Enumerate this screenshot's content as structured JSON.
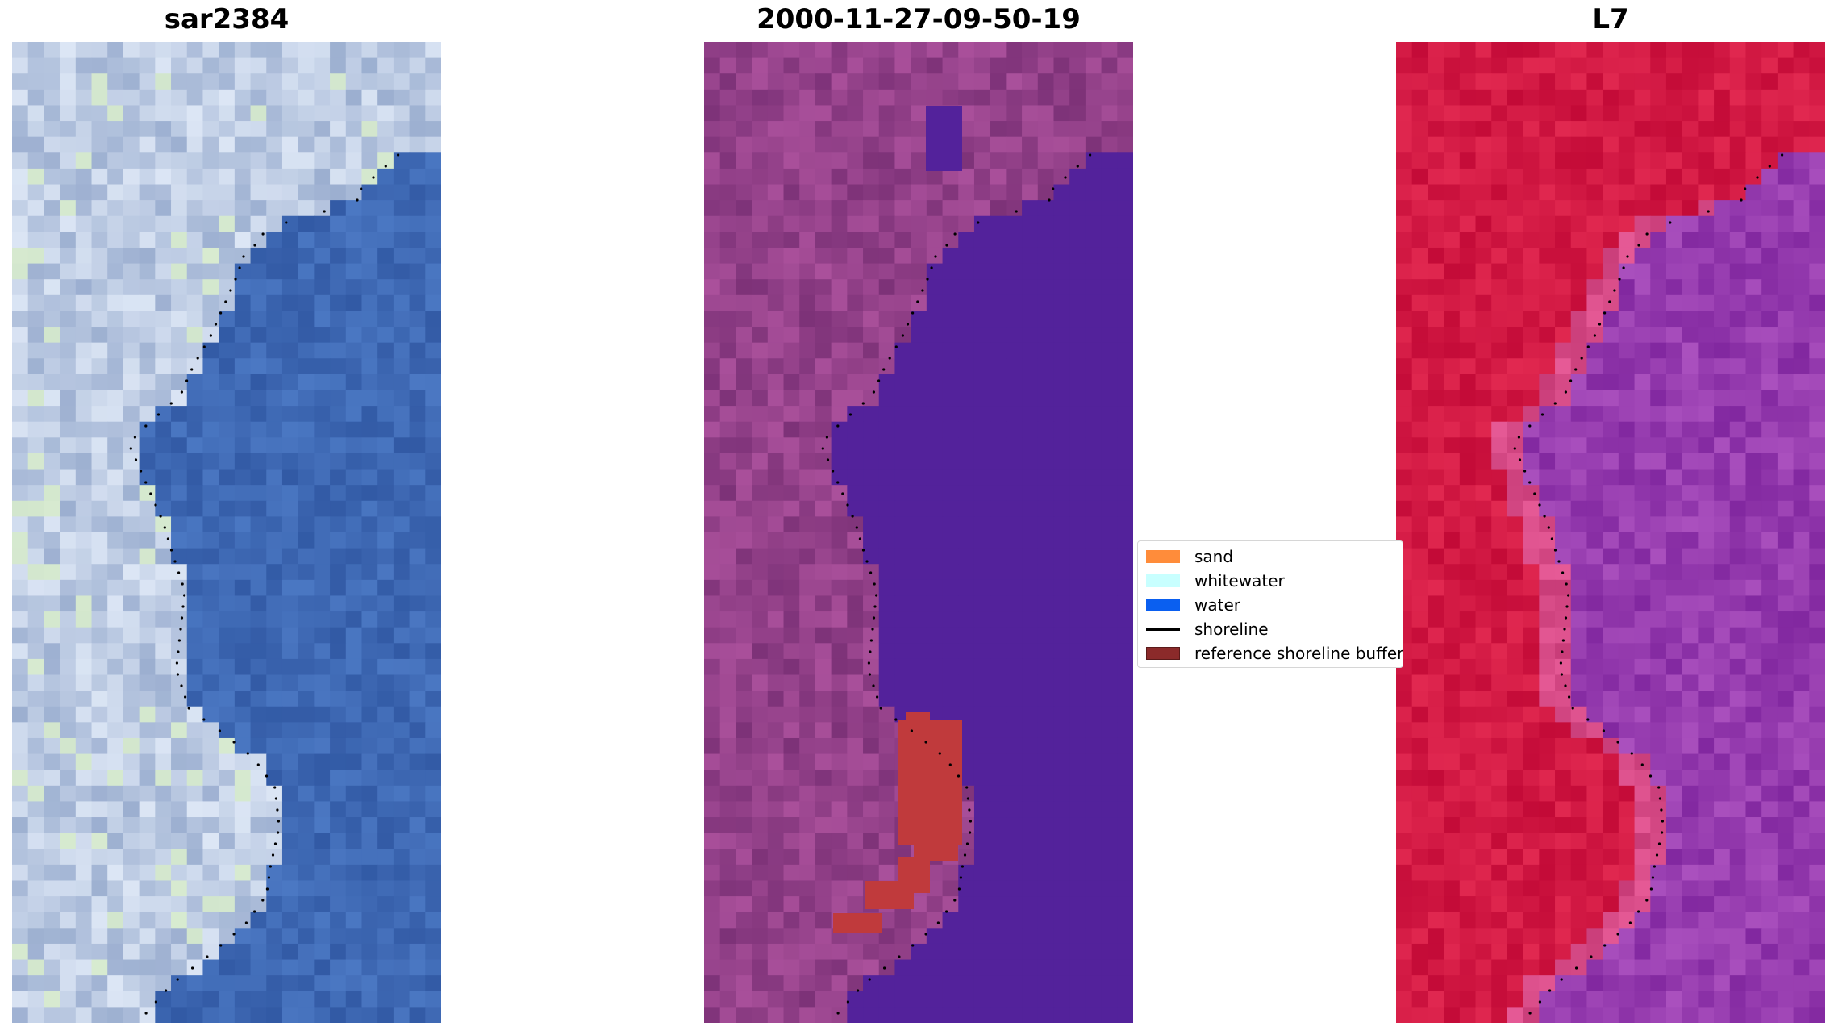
{
  "panels": [
    {
      "title": "sar2384",
      "colormap": "rgb"
    },
    {
      "title": "2000-11-27-09-50-19",
      "colormap": "classified"
    },
    {
      "title": "L7",
      "colormap": "index"
    }
  ],
  "legend": {
    "items": [
      {
        "label": "sand",
        "color": "#ff8c3a",
        "kind": "patch"
      },
      {
        "label": "whitewater",
        "color": "#c8ffff",
        "kind": "patch"
      },
      {
        "label": "water",
        "color": "#0a5ff0",
        "kind": "patch"
      },
      {
        "label": "shoreline",
        "color": "#000000",
        "kind": "line"
      },
      {
        "label": "reference shoreline buffer",
        "color": "#8b2a2a",
        "kind": "patch"
      }
    ]
  },
  "colors": {
    "water_class": "#53229b",
    "buffer_overlay": "#c03a3c",
    "shoreline_dots": "#000000"
  }
}
